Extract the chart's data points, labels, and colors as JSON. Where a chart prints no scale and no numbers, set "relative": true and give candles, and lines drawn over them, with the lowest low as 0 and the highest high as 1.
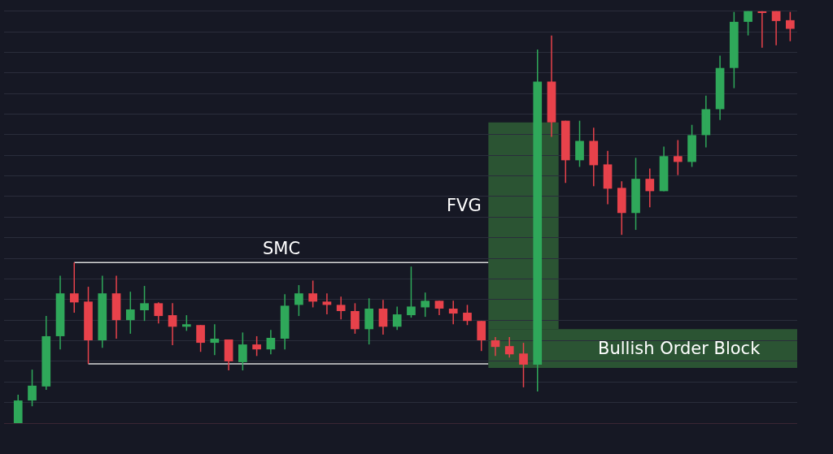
{
  "chart_data": {
    "type": "candlestick",
    "relative": true,
    "grid": true,
    "colors": [
      "#2fa85a",
      "#2fa85a",
      "#2fa85a",
      "#2fa85a",
      "#e8424b",
      "#e8424b",
      "#2fa85a",
      "#e8424b",
      "#2fa85a",
      "#2fa85a",
      "#e8424b",
      "#e8424b",
      "#2fa85a",
      "#e8424b",
      "#2fa85a",
      "#e8424b",
      "#2fa85a",
      "#e8424b",
      "#2fa85a",
      "#2fa85a",
      "#2fa85a",
      "#e8424b",
      "#e8424b",
      "#e8424b",
      "#e8424b",
      "#2fa85a",
      "#e8424b",
      "#2fa85a",
      "#2fa85a",
      "#2fa85a",
      "#e8424b",
      "#e8424b",
      "#e8424b",
      "#e8424b",
      "#e8424b",
      "#e8424b",
      "#e8424b",
      "#2fa85a",
      "#e8424b",
      "#e8424b",
      "#2fa85a",
      "#e8424b",
      "#e8424b",
      "#e8424b",
      "#2fa85a",
      "#e8424b",
      "#2fa85a",
      "#e8424b",
      "#2fa85a",
      "#2fa85a",
      "#2fa85a",
      "#2fa85a",
      "#2fa85a",
      "#e8424b",
      "#e8424b",
      "#e8424b"
    ],
    "categories": [
      null,
      null,
      null,
      null,
      null,
      null,
      null,
      null,
      null,
      null,
      null,
      null,
      null,
      null,
      null,
      null,
      null,
      null,
      null,
      null,
      null,
      null,
      null,
      null,
      null,
      null,
      null,
      null,
      null,
      null,
      null,
      null,
      null,
      null,
      null,
      null,
      null,
      null,
      null,
      null,
      null,
      null,
      null,
      null,
      null,
      null,
      null,
      null,
      null,
      null,
      null,
      null,
      null,
      null,
      null,
      null
    ],
    "ohlc": [
      [
        0,
        0.069,
        0,
        0.055
      ],
      [
        0.055,
        0.13,
        0.041,
        0.091
      ],
      [
        0.089,
        0.26,
        0.081,
        0.211
      ],
      [
        0.211,
        0.358,
        0.179,
        0.315
      ],
      [
        0.315,
        0.39,
        0.268,
        0.293
      ],
      [
        0.295,
        0.331,
        0.144,
        0.201
      ],
      [
        0.201,
        0.358,
        0.183,
        0.315
      ],
      [
        0.315,
        0.358,
        0.205,
        0.25
      ],
      [
        0.25,
        0.319,
        0.217,
        0.276
      ],
      [
        0.274,
        0.333,
        0.248,
        0.291
      ],
      [
        0.291,
        0.293,
        0.242,
        0.26
      ],
      [
        0.262,
        0.291,
        0.189,
        0.234
      ],
      [
        0.234,
        0.262,
        0.224,
        0.24
      ],
      [
        0.238,
        0.238,
        0.173,
        0.195
      ],
      [
        0.195,
        0.24,
        0.165,
        0.205
      ],
      [
        0.203,
        0.203,
        0.128,
        0.15
      ],
      [
        0.148,
        0.22,
        0.128,
        0.191
      ],
      [
        0.191,
        0.211,
        0.163,
        0.179
      ],
      [
        0.179,
        0.226,
        0.167,
        0.207
      ],
      [
        0.205,
        0.313,
        0.179,
        0.285
      ],
      [
        0.287,
        0.335,
        0.26,
        0.315
      ],
      [
        0.315,
        0.346,
        0.281,
        0.295
      ],
      [
        0.295,
        0.315,
        0.264,
        0.287
      ],
      [
        0.287,
        0.307,
        0.252,
        0.272
      ],
      [
        0.272,
        0.291,
        0.217,
        0.228
      ],
      [
        0.228,
        0.303,
        0.191,
        0.278
      ],
      [
        0.278,
        0.299,
        0.215,
        0.234
      ],
      [
        0.234,
        0.283,
        0.226,
        0.264
      ],
      [
        0.262,
        0.38,
        0.256,
        0.283
      ],
      [
        0.281,
        0.317,
        0.258,
        0.297
      ],
      [
        0.297,
        0.297,
        0.262,
        0.278
      ],
      [
        0.278,
        0.297,
        0.24,
        0.266
      ],
      [
        0.268,
        0.287,
        0.238,
        0.248
      ],
      [
        0.248,
        0.248,
        0.175,
        0.201
      ],
      [
        0.201,
        0.209,
        0.163,
        0.185
      ],
      [
        0.187,
        0.209,
        0.159,
        0.167
      ],
      [
        0.169,
        0.195,
        0.087,
        0.142
      ],
      [
        0.142,
        0.907,
        0.077,
        0.829
      ],
      [
        0.829,
        0.941,
        0.695,
        0.73
      ],
      [
        0.734,
        0.734,
        0.583,
        0.638
      ],
      [
        0.638,
        0.734,
        0.622,
        0.685
      ],
      [
        0.685,
        0.717,
        0.575,
        0.626
      ],
      [
        0.628,
        0.661,
        0.531,
        0.569
      ],
      [
        0.571,
        0.587,
        0.457,
        0.51
      ],
      [
        0.51,
        0.644,
        0.469,
        0.593
      ],
      [
        0.593,
        0.618,
        0.524,
        0.563
      ],
      [
        0.563,
        0.671,
        0.563,
        0.648
      ],
      [
        0.648,
        0.687,
        0.602,
        0.634
      ],
      [
        0.634,
        0.724,
        0.622,
        0.699
      ],
      [
        0.699,
        0.795,
        0.669,
        0.762
      ],
      [
        0.762,
        0.892,
        0.736,
        0.862
      ],
      [
        0.862,
        0.998,
        0.813,
        0.974
      ],
      [
        0.974,
        1,
        0.941,
        1
      ],
      [
        0.998,
        1,
        0.911,
        0.996
      ],
      [
        1,
        1,
        0.917,
        0.976
      ],
      [
        0.978,
        0.998,
        0.927,
        0.957
      ]
    ],
    "ref_lines": [
      {
        "axis": "y",
        "value": 0.39,
        "label": "SMC",
        "color": "#d8d8d8"
      },
      {
        "axis": "y",
        "value": 0.144,
        "color": "#d8d8d8"
      }
    ],
    "bands": [
      {
        "axis": "y",
        "from": 0.228,
        "to": 0.73,
        "label": "FVG",
        "color": "#2f5f36"
      },
      {
        "axis": "y",
        "from": 0.134,
        "to": 0.228,
        "label": "Bullish Order Block",
        "color": "#2f5f36"
      }
    ]
  }
}
